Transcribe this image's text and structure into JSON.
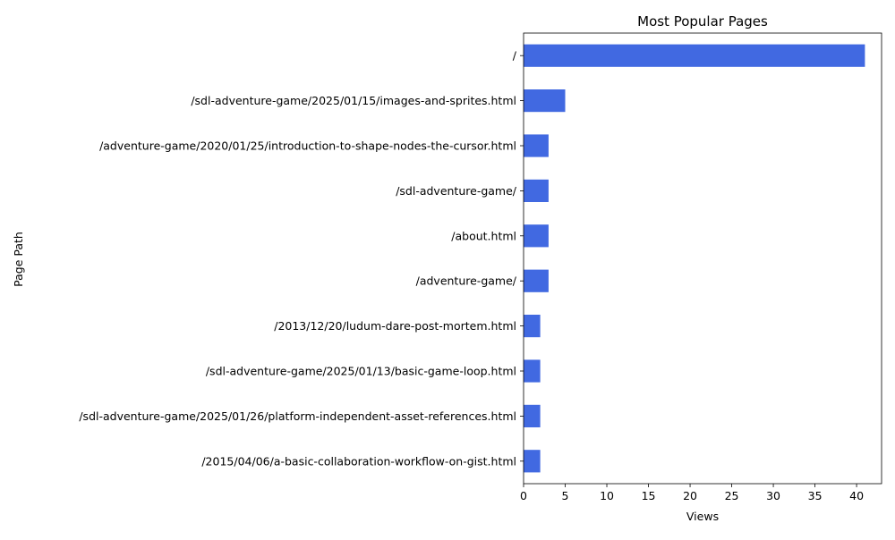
{
  "chart_data": {
    "type": "bar",
    "orientation": "horizontal",
    "title": "Most Popular Pages",
    "xlabel": "Views",
    "ylabel": "Page Path",
    "categories": [
      "/",
      "/sdl-adventure-game/2025/01/15/images-and-sprites.html",
      "/adventure-game/2020/01/25/introduction-to-shape-nodes-the-cursor.html",
      "/sdl-adventure-game/",
      "/about.html",
      "/adventure-game/",
      "/2013/12/20/ludum-dare-post-mortem.html",
      "/sdl-adventure-game/2025/01/13/basic-game-loop.html",
      "/sdl-adventure-game/2025/01/26/platform-independent-asset-references.html",
      "/2015/04/06/a-basic-collaboration-workflow-on-gist.html"
    ],
    "values": [
      41,
      5,
      3,
      3,
      3,
      3,
      2,
      2,
      2,
      2
    ],
    "xlim": [
      0,
      43
    ],
    "xticks": [
      0,
      5,
      10,
      15,
      20,
      25,
      30,
      35,
      40
    ],
    "grid": false,
    "bar_color": "#4169e1"
  }
}
